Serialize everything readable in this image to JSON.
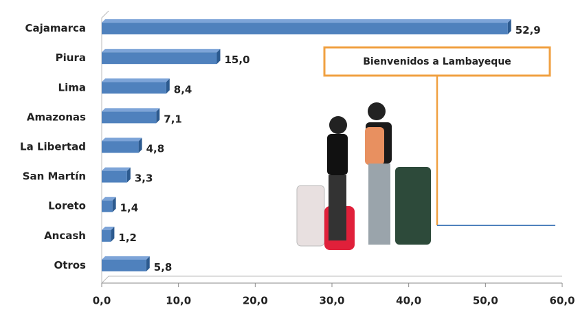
{
  "chart_data": {
    "type": "bar",
    "orientation": "horizontal",
    "categories": [
      "Cajamarca",
      "Piura",
      "Lima",
      "Amazonas",
      "La Libertad",
      "San Martín",
      "Loreto",
      "Ancash",
      "Otros"
    ],
    "values": [
      52.9,
      15.0,
      8.4,
      7.1,
      4.8,
      3.3,
      1.4,
      1.2,
      5.8
    ],
    "value_labels": [
      "52,9",
      "15,0",
      "8,4",
      "7,1",
      "4,8",
      "3,3",
      "1,4",
      "1,2",
      "5,8"
    ],
    "color": "#4f81bd",
    "xlim": [
      0,
      60
    ],
    "xticks": [
      {
        "value": 0,
        "label": "0,0"
      },
      {
        "value": 10,
        "label": "10,0"
      },
      {
        "value": 20,
        "label": "20,0"
      },
      {
        "value": 30,
        "label": "30,0"
      },
      {
        "value": 40,
        "label": "40,0"
      },
      {
        "value": 50,
        "label": "50,0"
      },
      {
        "value": 60,
        "label": "60,0"
      }
    ],
    "annotation": "Bienvenidos a Lambayeque"
  }
}
